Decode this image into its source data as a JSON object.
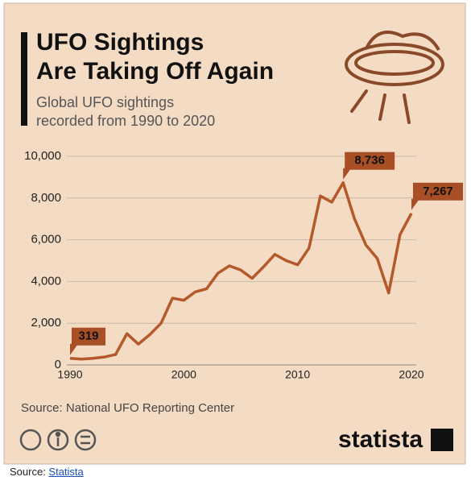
{
  "chart_data": {
    "type": "line",
    "title": [
      "UFO Sightings",
      "Are Taking Off Again"
    ],
    "subtitle": [
      "Global UFO sightings",
      "recorded from 1990 to 2020"
    ],
    "x": [
      1990,
      1991,
      1992,
      1993,
      1994,
      1995,
      1996,
      1997,
      1998,
      1999,
      2000,
      2001,
      2002,
      2003,
      2004,
      2005,
      2006,
      2007,
      2008,
      2009,
      2010,
      2011,
      2012,
      2013,
      2014,
      2015,
      2016,
      2017,
      2018,
      2019,
      2020
    ],
    "series": [
      {
        "name": "UFO sightings",
        "color": "#b5582a",
        "values": [
          319,
          280,
          320,
          380,
          500,
          1500,
          1000,
          1450,
          2000,
          3200,
          3100,
          3500,
          3650,
          4400,
          4750,
          4550,
          4150,
          4700,
          5300,
          5000,
          4800,
          5600,
          8100,
          7800,
          8736,
          7000,
          5750,
          5100,
          3450,
          6250,
          7267
        ],
        "value_labels": [
          "319",
          null,
          null,
          null,
          null,
          null,
          null,
          null,
          null,
          null,
          null,
          null,
          null,
          null,
          null,
          null,
          null,
          null,
          null,
          null,
          null,
          null,
          null,
          null,
          "8,736",
          null,
          null,
          null,
          null,
          null,
          "7,267"
        ]
      }
    ],
    "xlim": [
      1990,
      2020
    ],
    "xticks": [
      1990,
      2000,
      2010,
      2020
    ],
    "ylim": [
      0,
      10000
    ],
    "yticks": [
      0,
      {
        "value": 2000,
        "label": "2,000"
      },
      {
        "value": 4000,
        "label": "4,000"
      },
      {
        "value": 6000,
        "label": "6,000"
      },
      {
        "value": 8000,
        "label": "8,000"
      },
      {
        "value": 10000,
        "label": "10,000"
      }
    ],
    "grid": true,
    "source": "Source: National UFO Reporting Center",
    "brand": "statista"
  },
  "footer": {
    "prefix": "Source: ",
    "link": "Statista"
  }
}
